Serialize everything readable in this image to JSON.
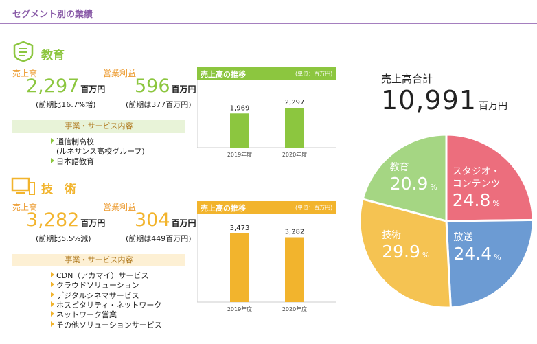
{
  "title": "セグメント別の業績",
  "segments": [
    {
      "name": "教育",
      "color": "#8cc63f",
      "light_color": "#e8f3d8",
      "sales_label": "売上高",
      "sales": "2,297",
      "sales_unit": "百万円",
      "sales_note": "(前期比16.7%増)",
      "profit_label": "営業利益",
      "profit": "596",
      "profit_unit": "百万円",
      "profit_note": "(前期は377百万円)",
      "services_title": "事業・サービス内容",
      "services": [
        [
          "通信制高校",
          "(ルネサンス高校グループ)"
        ],
        [
          "日本語教育"
        ]
      ],
      "chart": {
        "type": "bar",
        "title": "売上高の推移",
        "unit": "(単位：百万円)",
        "categories": [
          "2019年度",
          "2020年度"
        ],
        "values": [
          1969,
          2297
        ],
        "value_labels": [
          "1,969",
          "2,297"
        ]
      }
    },
    {
      "name": "技　術",
      "color": "#f2b42d",
      "light_color": "#fdf0d4",
      "sales_label": "売上高",
      "sales": "3,282",
      "sales_unit": "百万円",
      "sales_note": "(前期比5.5%減)",
      "profit_label": "営業利益",
      "profit": "304",
      "profit_unit": "百万円",
      "profit_note": "(前期は449百万円)",
      "services_title": "事業・サービス内容",
      "services": [
        [
          "CDN（アカマイ）サービス"
        ],
        [
          "クラウドソリューション"
        ],
        [
          "デジタルシネマサービス"
        ],
        [
          "ホスピタリティ・ネットワーク"
        ],
        [
          "ネットワーク営業"
        ],
        [
          "その他ソリューションサービス"
        ]
      ],
      "chart": {
        "type": "bar",
        "title": "売上高の推移",
        "unit": "(単位：百万円)",
        "categories": [
          "2019年度",
          "2020年度"
        ],
        "values": [
          3473,
          3282
        ],
        "value_labels": [
          "3,473",
          "3,282"
        ]
      }
    }
  ],
  "total": {
    "title": "売上高合計",
    "value": "10,991",
    "unit": "百万円"
  },
  "pie": {
    "type": "pie",
    "unit": "%",
    "slices": [
      {
        "name": "スタジオ・コンテンツ",
        "value": 24.8,
        "color": "#ec6e7d"
      },
      {
        "name": "放送",
        "value": 24.4,
        "color": "#6c9bd3"
      },
      {
        "name": "技術",
        "value": 29.9,
        "color": "#f5c352"
      },
      {
        "name": "教育",
        "value": 20.9,
        "color": "#a5d683"
      }
    ]
  }
}
